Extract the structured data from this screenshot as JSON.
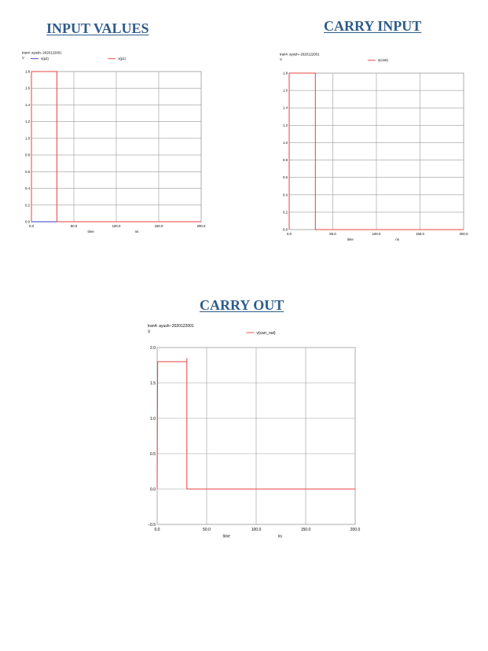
{
  "headings": {
    "input": "INPUT VALUES",
    "carry_in": "CARRY INPUT",
    "carry_out": "CARRY OUT"
  },
  "chart_data": [
    {
      "type": "line",
      "heading": "INPUT VALUES",
      "title": "tran4: ayush--2020122001",
      "ylabel": "V",
      "xlabel": "time",
      "xunit": "ns",
      "xlim": [
        0,
        200
      ],
      "ylim": [
        0,
        1.8
      ],
      "xticks": [
        "0.0",
        "50.0",
        "100.0",
        "150.0",
        "200.0"
      ],
      "yticks": [
        "0.0",
        "0.2",
        "0.4",
        "0.6",
        "0.8",
        "1.0",
        "1.2",
        "1.4",
        "1.6",
        "1.8"
      ],
      "legend": "top",
      "grid": true,
      "series": [
        {
          "name": "v(p2)",
          "color": "#3a3acc",
          "points": [
            [
              0,
              0
            ],
            [
              200,
              0
            ]
          ]
        },
        {
          "name": "v(p1)",
          "color": "#e84040",
          "points": [
            [
              0,
              0
            ],
            [
              0,
              1.8
            ],
            [
              30,
              1.8
            ],
            [
              30,
              0
            ],
            [
              200,
              0
            ]
          ]
        }
      ]
    },
    {
      "type": "line",
      "heading": "CARRY INPUT",
      "title": "tran4: ayush--2020122001",
      "ylabel": "V",
      "xlabel": "time",
      "xunit": "ns",
      "xlim": [
        0,
        200
      ],
      "ylim": [
        0,
        1.8
      ],
      "xticks": [
        "0.0",
        "50.0",
        "100.0",
        "150.0",
        "200.0"
      ],
      "yticks": [
        "0.0",
        "0.2",
        "0.4",
        "0.6",
        "0.8",
        "1.0",
        "1.2",
        "1.4",
        "1.6",
        "1.8"
      ],
      "legend": "top",
      "grid": true,
      "series": [
        {
          "name": "v(cin0)",
          "color": "#e84040",
          "points": [
            [
              0,
              0
            ],
            [
              0,
              1.8
            ],
            [
              30,
              1.8
            ],
            [
              30,
              0
            ],
            [
              200,
              0
            ]
          ]
        }
      ]
    },
    {
      "type": "line",
      "heading": "CARRY OUT",
      "title": "tran4: ayush--2020122001",
      "ylabel": "V",
      "xlabel": "time",
      "xunit": "ns",
      "xlim": [
        0,
        200
      ],
      "ylim": [
        -0.5,
        2.0
      ],
      "xticks": [
        "0.0",
        "50.0",
        "100.0",
        "150.0",
        "200.0"
      ],
      "yticks": [
        "−0.5",
        "0.0",
        "0.5",
        "1.0",
        "1.5",
        "2.0"
      ],
      "legend": "top",
      "grid": true,
      "series": [
        {
          "name": "v(carr_out)",
          "color": "#e84040",
          "points": [
            [
              0,
              0
            ],
            [
              0.5,
              1.8
            ],
            [
              30,
              1.8
            ],
            [
              30,
              1.85
            ],
            [
              30,
              0
            ],
            [
              200,
              0
            ]
          ]
        }
      ]
    }
  ]
}
